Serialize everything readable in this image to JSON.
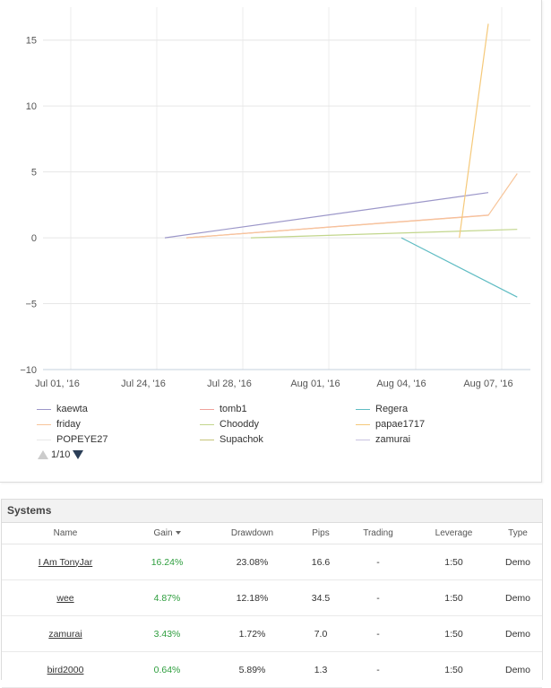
{
  "chart_data": {
    "type": "line",
    "title": "",
    "xlabel": "",
    "ylabel": "",
    "ylim": [
      -10,
      17.5
    ],
    "y_ticks": [
      "15",
      "10",
      "5",
      "0",
      "−5",
      "−10"
    ],
    "x_tick_labels": [
      "Jul 01, '16",
      "Jul 24, '16",
      "Jul 28, '16",
      "Aug 01, '16",
      "Aug 04, '16",
      "Aug 07, '16"
    ],
    "series": [
      {
        "name": "kaewta",
        "color": "#9c97c9",
        "points": [
          [
            "Jul 25, '16",
            0.0
          ],
          [
            "Aug 07, '16",
            3.43
          ]
        ]
      },
      {
        "name": "tomb1",
        "color": "#f0a29b",
        "points": [
          [
            "Jul 26, '16",
            0.0
          ],
          [
            "Aug 07, '16",
            1.72
          ]
        ]
      },
      {
        "name": "Regera",
        "color": "#5fbcc3",
        "points": [
          [
            "Aug 04, '16",
            0.0
          ],
          [
            "Aug 08, '16",
            -4.5
          ]
        ]
      },
      {
        "name": "friday",
        "color": "#f7c59a",
        "points": [
          [
            "Jul 26, '16",
            0.0
          ],
          [
            "Aug 07, '16",
            1.7
          ],
          [
            "Aug 08, '16",
            4.87
          ]
        ]
      },
      {
        "name": "Chooddy",
        "color": "#c2d68c",
        "points": [
          [
            "Jul 29, '16",
            0.0
          ],
          [
            "Aug 08, '16",
            0.64
          ]
        ]
      },
      {
        "name": "papae1717",
        "color": "#f5c97a",
        "points": [
          [
            "Aug 06, '16",
            0.0
          ],
          [
            "Aug 07, '16",
            16.24
          ]
        ]
      },
      {
        "name": "POPEYE27",
        "color": "#e8e8e8",
        "points": []
      },
      {
        "name": "Supachok",
        "color": "#c6c47a",
        "points": []
      },
      {
        "name": "zamurai",
        "color": "#c9c2e0",
        "points": []
      }
    ],
    "legend_page": "1/10",
    "grid": true
  },
  "systems": {
    "title": "Systems",
    "columns": [
      "Name",
      "Gain",
      "Drawdown",
      "Pips",
      "Trading",
      "Leverage",
      "Type"
    ],
    "rows": [
      {
        "name": "I Am TonyJar",
        "gain": "16.24%",
        "drawdown": "23.08%",
        "pips": "16.6",
        "trading": "-",
        "leverage": "1:50",
        "type": "Demo"
      },
      {
        "name": "wee",
        "gain": "4.87%",
        "drawdown": "12.18%",
        "pips": "34.5",
        "trading": "-",
        "leverage": "1:50",
        "type": "Demo"
      },
      {
        "name": "zamurai",
        "gain": "3.43%",
        "drawdown": "1.72%",
        "pips": "7.0",
        "trading": "-",
        "leverage": "1:50",
        "type": "Demo"
      },
      {
        "name": "bird2000",
        "gain": "0.64%",
        "drawdown": "5.89%",
        "pips": "1.3",
        "trading": "-",
        "leverage": "1:50",
        "type": "Demo"
      }
    ]
  }
}
